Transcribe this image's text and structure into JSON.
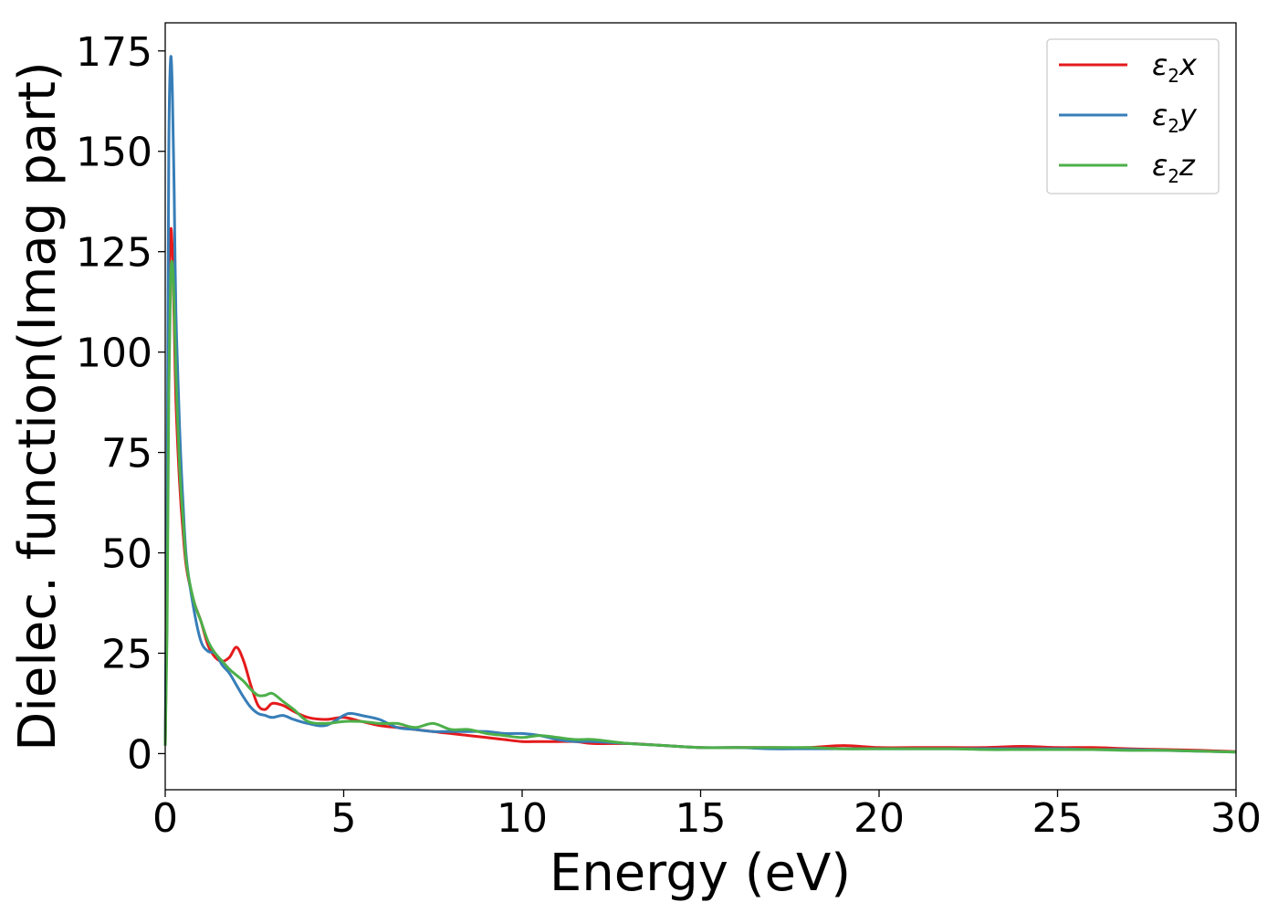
{
  "chart_data": {
    "type": "line",
    "title": "",
    "xlabel": "Energy (eV)",
    "ylabel": "Dielec. function(Imag part)",
    "xlim": [
      0,
      30
    ],
    "ylim": [
      -9,
      182
    ],
    "xticks": [
      0,
      5,
      10,
      15,
      20,
      25,
      30
    ],
    "yticks": [
      0,
      25,
      50,
      75,
      100,
      125,
      150,
      175
    ],
    "grid": false,
    "legend_position": "top-right",
    "series": [
      {
        "name": "ε2x",
        "legend": {
          "base": "ε",
          "sub": "2",
          "tail": "x"
        },
        "color": "#e41a1c",
        "x": [
          0,
          0.05,
          0.1,
          0.15,
          0.2,
          0.25,
          0.3,
          0.4,
          0.5,
          0.6,
          0.8,
          1.0,
          1.2,
          1.4,
          1.6,
          1.8,
          2.0,
          2.2,
          2.4,
          2.6,
          2.8,
          3.0,
          3.3,
          3.6,
          4.0,
          4.5,
          5.0,
          5.5,
          6.0,
          6.5,
          7.0,
          7.5,
          8.0,
          8.5,
          9.0,
          9.5,
          10.0,
          10.5,
          11.0,
          11.5,
          12.0,
          13.0,
          14.0,
          15.0,
          16.0,
          17.0,
          18.0,
          19.0,
          20.0,
          21.0,
          22.0,
          23.0,
          24.0,
          25.0,
          26.0,
          27.0,
          28.0,
          29.0,
          30.0
        ],
        "y": [
          2,
          40,
          110,
          130,
          125,
          108,
          88,
          68,
          55,
          46,
          38,
          33,
          27,
          24,
          23,
          24,
          26.5,
          23,
          17,
          12,
          11,
          12.5,
          12,
          10.5,
          9,
          8.5,
          9,
          8,
          7,
          6.5,
          6,
          5.5,
          5,
          4.5,
          4,
          3.5,
          3,
          3,
          3,
          3,
          2.5,
          2.5,
          2,
          1.5,
          1.5,
          1.5,
          1.5,
          2,
          1.5,
          1.5,
          1.5,
          1.5,
          1.8,
          1.5,
          1.5,
          1.2,
          1,
          0.8,
          0.5
        ]
      },
      {
        "name": "ε2y",
        "legend": {
          "base": "ε",
          "sub": "2",
          "tail": "y"
        },
        "color": "#377eb8",
        "x": [
          0,
          0.05,
          0.1,
          0.15,
          0.2,
          0.25,
          0.3,
          0.4,
          0.5,
          0.6,
          0.8,
          1.0,
          1.2,
          1.4,
          1.6,
          1.8,
          2.0,
          2.2,
          2.4,
          2.6,
          2.8,
          3.0,
          3.3,
          3.6,
          4.0,
          4.5,
          5.0,
          5.2,
          5.5,
          6.0,
          6.5,
          7.0,
          7.5,
          8.0,
          8.5,
          9.0,
          9.5,
          10.0,
          10.5,
          11.0,
          11.5,
          12.0,
          13.0,
          14.0,
          15.0,
          16.0,
          17.0,
          18.0,
          19.0,
          20.0,
          21.0,
          22.0,
          23.0,
          24.0,
          25.0,
          26.0,
          27.0,
          28.0,
          29.0,
          30.0
        ],
        "y": [
          2,
          60,
          150,
          173,
          165,
          140,
          110,
          82,
          62,
          48,
          36,
          28,
          25.5,
          25,
          22,
          20,
          17,
          14,
          11.5,
          10,
          9.5,
          9,
          9.5,
          8.5,
          7.5,
          7,
          9.5,
          10,
          9.5,
          8.5,
          6.5,
          6,
          5.5,
          5.5,
          5.5,
          5.5,
          5,
          5,
          4.5,
          3.5,
          3,
          3,
          2.5,
          2,
          1.5,
          1.5,
          1.2,
          1.2,
          1.2,
          1.2,
          1.2,
          1.2,
          1.2,
          1.2,
          1.2,
          1,
          1,
          0.8,
          0.6,
          0.4
        ]
      },
      {
        "name": "ε2z",
        "legend": {
          "base": "ε",
          "sub": "2",
          "tail": "z"
        },
        "color": "#4daf4a",
        "x": [
          0,
          0.05,
          0.1,
          0.15,
          0.2,
          0.25,
          0.3,
          0.4,
          0.5,
          0.6,
          0.8,
          1.0,
          1.2,
          1.4,
          1.6,
          1.8,
          2.0,
          2.2,
          2.4,
          2.6,
          2.8,
          3.0,
          3.3,
          3.6,
          4.0,
          4.5,
          5.0,
          5.5,
          6.0,
          6.5,
          7.0,
          7.5,
          8.0,
          8.5,
          9.0,
          9.5,
          10.0,
          10.5,
          11.0,
          11.5,
          12.0,
          13.0,
          14.0,
          15.0,
          16.0,
          17.0,
          18.0,
          19.0,
          20.0,
          21.0,
          22.0,
          23.0,
          24.0,
          25.0,
          26.0,
          27.0,
          28.0,
          29.0,
          30.0
        ],
        "y": [
          2,
          30,
          90,
          118,
          122,
          112,
          95,
          72,
          58,
          47,
          38,
          33,
          28,
          25,
          23,
          21,
          19.5,
          18,
          16,
          14.5,
          14.5,
          15,
          13,
          11,
          8,
          7.5,
          8,
          8,
          7.5,
          7.5,
          6.5,
          7.5,
          6,
          6,
          5,
          4.5,
          4,
          4.5,
          4,
          3.5,
          3.5,
          2.5,
          2,
          1.5,
          1.5,
          1.5,
          1.5,
          1.2,
          1.2,
          1.2,
          1.2,
          1,
          1,
          1,
          1,
          0.8,
          0.8,
          0.6,
          0.4
        ]
      }
    ]
  }
}
